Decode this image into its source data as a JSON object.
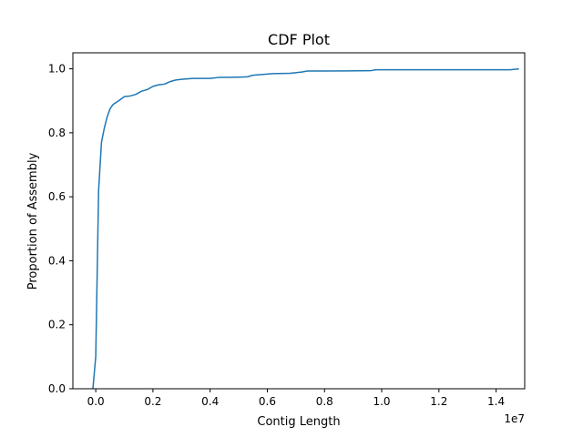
{
  "chart_data": {
    "type": "line",
    "title": "CDF Plot",
    "xlabel": "Contig Length",
    "ylabel": "Proportion of Assembly",
    "x_offset_label": "1e7",
    "xlim": [
      -0.08,
      1.5
    ],
    "ylim": [
      0.0,
      1.05
    ],
    "x_ticks": [
      0.0,
      0.2,
      0.4,
      0.6,
      0.8,
      1.0,
      1.2,
      1.4
    ],
    "x_tick_labels": [
      "0.0",
      "0.2",
      "0.4",
      "0.6",
      "0.8",
      "1.0",
      "1.2",
      "1.4"
    ],
    "y_ticks": [
      0.0,
      0.2,
      0.4,
      0.6,
      0.8,
      1.0
    ],
    "y_tick_labels": [
      "0.0",
      "0.2",
      "0.4",
      "0.6",
      "0.8",
      "1.0"
    ],
    "grid": false,
    "legend": "none",
    "series": [
      {
        "color": "#1f77b4",
        "x": [
          -0.01,
          0.0,
          0.01,
          0.02,
          0.03,
          0.04,
          0.05,
          0.06,
          0.08,
          0.1,
          0.12,
          0.14,
          0.16,
          0.18,
          0.2,
          0.22,
          0.24,
          0.26,
          0.28,
          0.3,
          0.34,
          0.4,
          0.43,
          0.5,
          0.53,
          0.55,
          0.58,
          0.62,
          0.68,
          0.72,
          0.74,
          0.8,
          0.96,
          0.98,
          1.45,
          1.48
        ],
        "y": [
          0.0,
          0.1,
          0.62,
          0.77,
          0.815,
          0.85,
          0.875,
          0.888,
          0.9,
          0.913,
          0.915,
          0.92,
          0.93,
          0.935,
          0.945,
          0.95,
          0.952,
          0.96,
          0.965,
          0.967,
          0.97,
          0.97,
          0.973,
          0.974,
          0.975,
          0.98,
          0.982,
          0.985,
          0.986,
          0.99,
          0.993,
          0.993,
          0.994,
          0.997,
          0.997,
          1.0
        ]
      }
    ]
  }
}
